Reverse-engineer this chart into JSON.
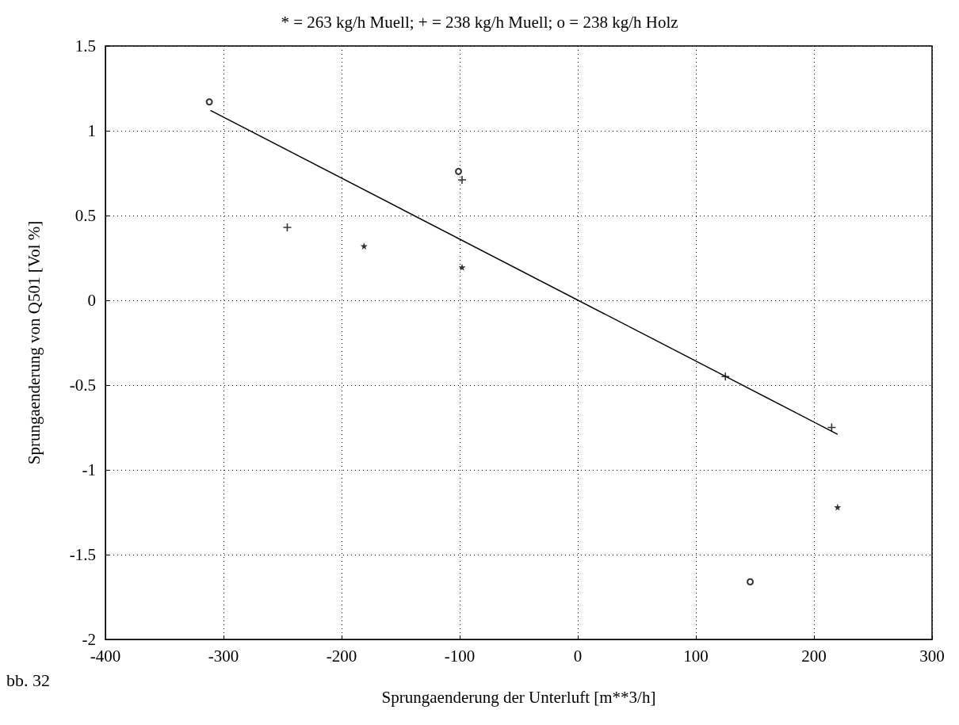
{
  "chart_data": {
    "type": "scatter",
    "title": "* = 263 kg/h Muell; + = 238 kg/h Muell; o = 238 kg/h Holz",
    "xlabel": "Sprungaenderung der Unterluft [m**3/h]",
    "ylabel": "Sprungaenderung von Q501 [Vol %]",
    "annotations": [
      "bb. 32"
    ],
    "series": [
      {
        "marker": "star",
        "color": "#000000",
        "x": [
          -181,
          -98,
          220
        ],
        "values": [
          0.32,
          0.195,
          -1.22
        ]
      },
      {
        "marker": "cross",
        "color": "#000000",
        "x": [
          -246,
          -98,
          125,
          215
        ],
        "values": [
          0.43,
          0.71,
          -0.45,
          -0.75
        ]
      },
      {
        "marker": "circle",
        "color": "#000000",
        "x": [
          -312,
          -101,
          146
        ],
        "values": [
          1.17,
          0.76,
          -1.66
        ]
      },
      {
        "type": "line",
        "marker": "none",
        "color": "#000000",
        "x": [
          -311,
          220
        ],
        "values": [
          1.12,
          -0.79
        ]
      }
    ],
    "xlim": [
      -400,
      300
    ],
    "xticks": [
      -400,
      -300,
      -200,
      -100,
      0,
      100,
      200,
      300
    ],
    "ylim": [
      -2,
      1.5
    ],
    "yticks": [
      -2,
      -1.5,
      -1,
      -0.5,
      0,
      0.5,
      1,
      1.5
    ],
    "grid": true,
    "line_style": "solid"
  }
}
